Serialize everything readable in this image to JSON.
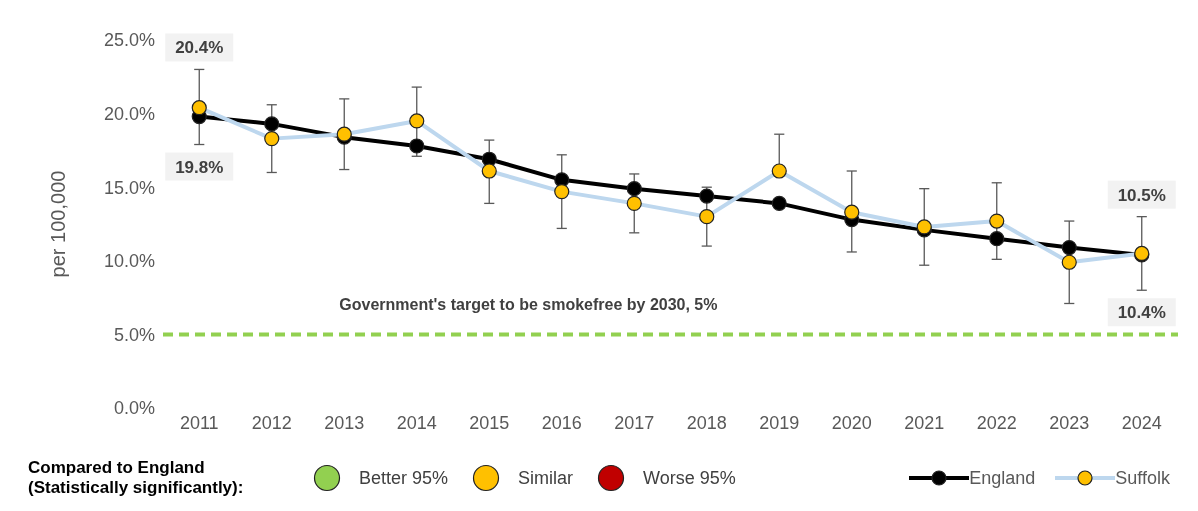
{
  "chart_data": {
    "type": "line",
    "ylabel": "per 100,000",
    "categories": [
      "2011",
      "2012",
      "2013",
      "2014",
      "2015",
      "2016",
      "2017",
      "2018",
      "2019",
      "2020",
      "2021",
      "2022",
      "2023",
      "2024"
    ],
    "series": [
      {
        "name": "England",
        "color": "#000000",
        "values": [
          19.8,
          19.3,
          18.4,
          17.8,
          16.9,
          15.5,
          14.9,
          14.4,
          13.9,
          12.8,
          12.1,
          11.5,
          10.9,
          10.4
        ],
        "value_labels": [
          "19.8%",
          null,
          null,
          null,
          null,
          null,
          null,
          null,
          null,
          null,
          null,
          null,
          null,
          "10.4%"
        ]
      },
      {
        "name": "Suffolk",
        "color": "#bdd7ee",
        "colors": [
          "#ffc000",
          "#ffc000",
          "#ffc000",
          "#ffc000",
          "#ffc000",
          "#ffc000",
          "#ffc000",
          "#ffc000",
          "#ffc000",
          "#ffc000",
          "#ffc000",
          "#ffc000",
          "#ffc000",
          "#ffc000"
        ],
        "values": [
          20.4,
          18.3,
          18.6,
          19.5,
          16.1,
          14.7,
          13.9,
          13.0,
          16.1,
          13.3,
          12.3,
          12.7,
          9.9,
          10.5
        ],
        "errors": [
          [
            17.9,
            23.0
          ],
          [
            16.0,
            20.6
          ],
          [
            16.2,
            21.0
          ],
          [
            17.1,
            21.8
          ],
          [
            13.9,
            18.2
          ],
          [
            12.2,
            17.2
          ],
          [
            11.9,
            15.9
          ],
          [
            11.0,
            15.0
          ],
          [
            16.1,
            18.6
          ],
          [
            10.6,
            16.1
          ],
          [
            9.7,
            14.9
          ],
          [
            10.1,
            15.3
          ],
          [
            7.1,
            12.7
          ],
          [
            8.0,
            13.0
          ]
        ],
        "value_labels": [
          "20.4%",
          null,
          null,
          null,
          null,
          null,
          null,
          null,
          null,
          null,
          null,
          null,
          null,
          "10.5%"
        ]
      }
    ],
    "ylim": [
      0,
      25
    ],
    "yticks": [
      {
        "value": 0,
        "label": "0.0%"
      },
      {
        "value": 5,
        "label": "5.0%"
      },
      {
        "value": 10,
        "label": "10.0%"
      },
      {
        "value": 15,
        "label": "15.0%"
      },
      {
        "value": 20,
        "label": "20.0%"
      },
      {
        "value": 25,
        "label": "25.0%"
      }
    ],
    "ref_lines": [
      {
        "axis": "y",
        "value": 5,
        "label": "Government's target to be smokefree by 2030, 5%",
        "color": "#92d050",
        "line_style": "dashed"
      }
    ],
    "annotations": [
      "Compared to England (Statistically significantly):",
      "Better 95%",
      "Similar",
      "Worse 95%"
    ],
    "marker": "circle",
    "line_style": "solid",
    "legend": "bottom"
  }
}
